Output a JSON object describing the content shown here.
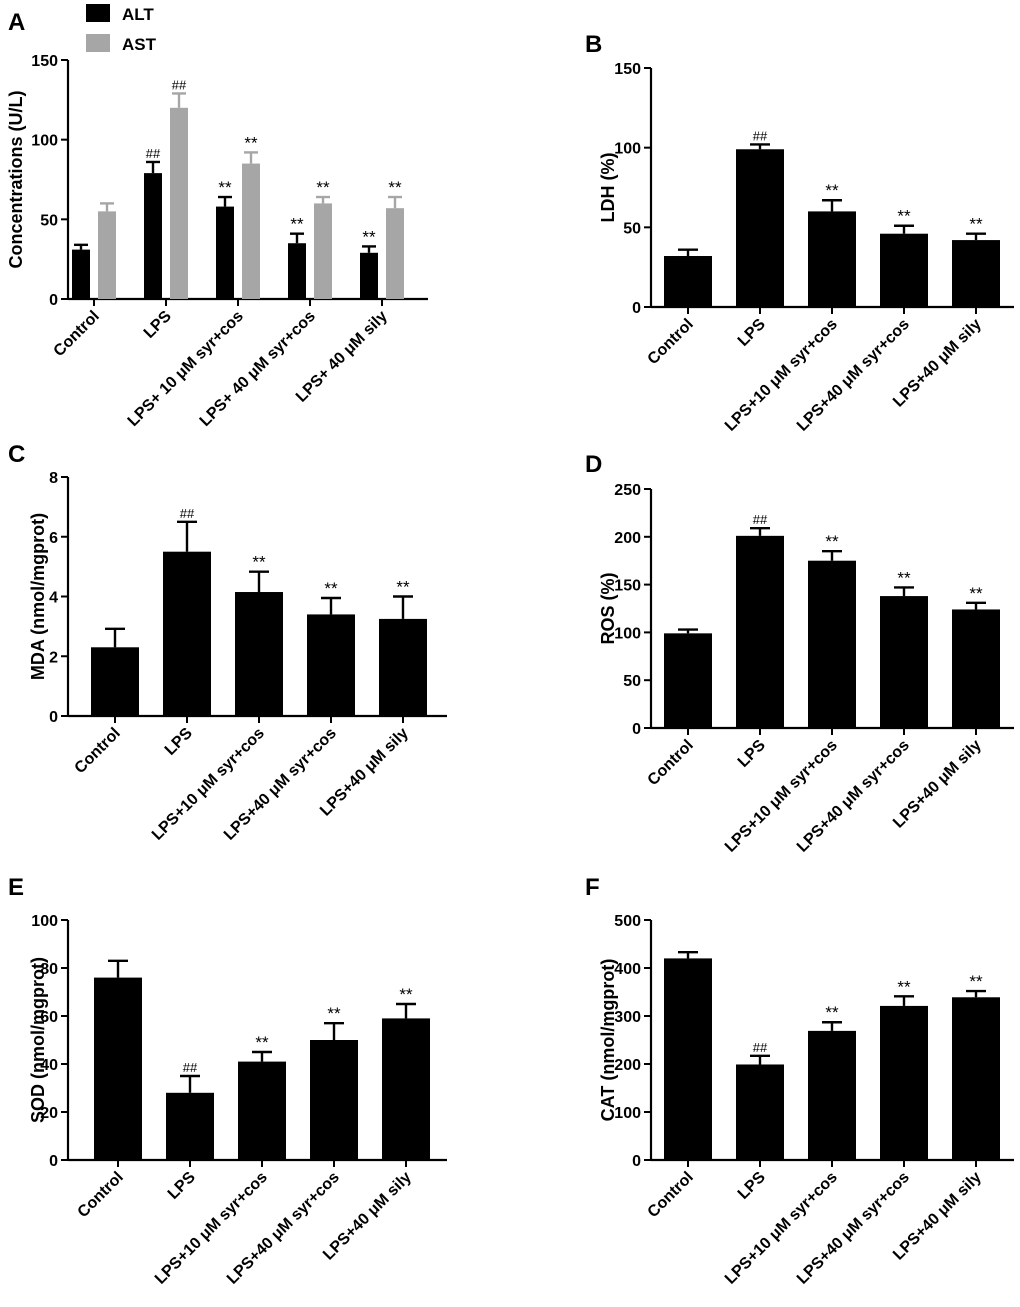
{
  "colors": {
    "bar_primary": "#000000",
    "bar_secondary": "#a6a6a6",
    "axis": "#000000",
    "background": "#ffffff"
  },
  "chart_data": [
    {
      "panel": "A",
      "type": "bar",
      "ylabel": "Concentrations (U/L)",
      "ylim": [
        0,
        150
      ],
      "yticks": [
        0,
        50,
        100,
        150
      ],
      "categories": [
        "Control",
        "LPS",
        "LPS+ 10 μM syr+cos",
        "LPS+ 40 μM syr+cos",
        "LPS+ 40 μM sily"
      ],
      "legend_position": "top-left",
      "series": [
        {
          "name": "ALT",
          "color": "#000000",
          "values": [
            31,
            79,
            58,
            35,
            29
          ],
          "errors": [
            3,
            7,
            6,
            6,
            4
          ],
          "annotations": [
            "",
            "##",
            "**",
            "**",
            "**"
          ]
        },
        {
          "name": "AST",
          "color": "#a6a6a6",
          "values": [
            55,
            120,
            85,
            60,
            57
          ],
          "errors": [
            5,
            9,
            7,
            4,
            7
          ],
          "annotations": [
            "",
            "##",
            "**",
            "**",
            "**"
          ]
        }
      ]
    },
    {
      "panel": "B",
      "type": "bar",
      "ylabel": "LDH (%)",
      "ylim": [
        0,
        150
      ],
      "yticks": [
        0,
        50,
        100,
        150
      ],
      "categories": [
        "Control",
        "LPS",
        "LPS+10 μM syr+cos",
        "LPS+40 μM syr+cos",
        "LPS+40 μM sily"
      ],
      "series": [
        {
          "name": "LDH",
          "color": "#000000",
          "values": [
            32,
            99,
            60,
            46,
            42
          ],
          "errors": [
            4,
            3,
            7,
            5,
            4
          ],
          "annotations": [
            "",
            "##",
            "**",
            "**",
            "**"
          ]
        }
      ]
    },
    {
      "panel": "C",
      "type": "bar",
      "ylabel": "MDA (nmol/mgprot)",
      "ylim": [
        0,
        8
      ],
      "yticks": [
        0,
        2,
        4,
        6,
        8
      ],
      "categories": [
        "Control",
        "LPS",
        "LPS+10 μM syr+cos",
        "LPS+40 μM syr+cos",
        "LPS+40 μM sily"
      ],
      "series": [
        {
          "name": "MDA",
          "color": "#000000",
          "values": [
            2.3,
            5.5,
            4.15,
            3.4,
            3.25
          ],
          "errors": [
            0.62,
            1.0,
            0.68,
            0.55,
            0.75
          ],
          "annotations": [
            "",
            "##",
            "**",
            "**",
            "**"
          ]
        }
      ]
    },
    {
      "panel": "D",
      "type": "bar",
      "ylabel": "ROS (%)",
      "ylim": [
        0,
        250
      ],
      "yticks": [
        0,
        50,
        100,
        150,
        200,
        250
      ],
      "categories": [
        "Control",
        "LPS",
        "LPS+10 μM syr+cos",
        "LPS+40 μM syr+cos",
        "LPS+40 μM sily"
      ],
      "series": [
        {
          "name": "ROS",
          "color": "#000000",
          "values": [
            99,
            201,
            175,
            138,
            124
          ],
          "errors": [
            4,
            8,
            10,
            9,
            7
          ],
          "annotations": [
            "",
            "##",
            "**",
            "**",
            "**"
          ]
        }
      ]
    },
    {
      "panel": "E",
      "type": "bar",
      "ylabel": "SOD (nmol/mgprot)",
      "ylim": [
        0,
        100
      ],
      "yticks": [
        0,
        20,
        40,
        60,
        80,
        100
      ],
      "categories": [
        "Control",
        "LPS",
        "LPS+10 μM syr+cos",
        "LPS+40 μM syr+cos",
        "LPS+40 μM sily"
      ],
      "series": [
        {
          "name": "SOD",
          "color": "#000000",
          "values": [
            76,
            28,
            41,
            50,
            59
          ],
          "errors": [
            7,
            7,
            4,
            7,
            6
          ],
          "annotations": [
            "",
            "##",
            "**",
            "**",
            "**"
          ]
        }
      ]
    },
    {
      "panel": "F",
      "type": "bar",
      "ylabel": "CAT (nmol/mgprot)",
      "ylim": [
        0,
        500
      ],
      "yticks": [
        0,
        100,
        200,
        300,
        400,
        500
      ],
      "categories": [
        "Control",
        "LPS",
        "LPS+10 μM syr+cos",
        "LPS+40 μM syr+cos",
        "LPS+40 μM sily"
      ],
      "series": [
        {
          "name": "CAT",
          "color": "#000000",
          "values": [
            420,
            199,
            269,
            321,
            339
          ],
          "errors": [
            13,
            18,
            18,
            20,
            13
          ],
          "annotations": [
            "",
            "##",
            "**",
            "**",
            "**"
          ]
        }
      ]
    }
  ]
}
